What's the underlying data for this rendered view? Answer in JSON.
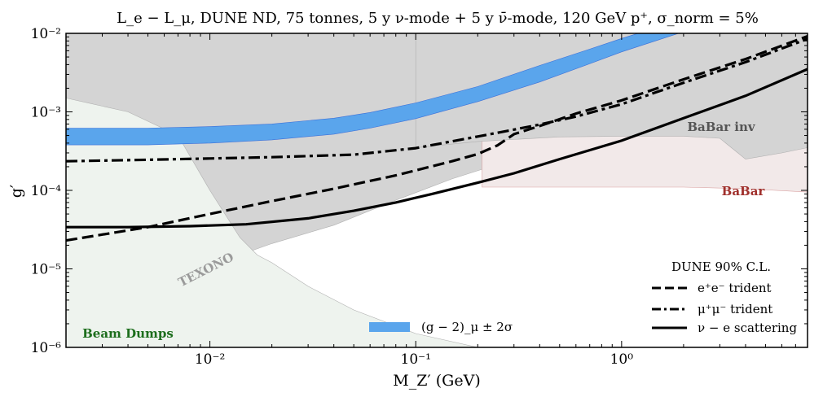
{
  "chart_data": {
    "type": "line",
    "title": "L_e − L_μ,  DUNE ND,   75 tonnes,  5 y ν-mode + 5 y ν̄-mode,  120 GeV p⁺,  σ_norm = 5%",
    "xlabel": "M_Z′ (GeV)",
    "ylabel": "g′",
    "xscale": "log",
    "yscale": "log",
    "xlim": [
      0.002,
      8
    ],
    "ylim": [
      1e-06,
      0.01
    ],
    "x_ticks": [
      {
        "value": 0.01,
        "label": "10⁻²"
      },
      {
        "value": 0.1,
        "label": "10⁻¹"
      },
      {
        "value": 1,
        "label": "10⁰"
      }
    ],
    "y_ticks": [
      {
        "value": 1e-06,
        "label": "10⁻⁶"
      },
      {
        "value": 1e-05,
        "label": "10⁻⁵"
      },
      {
        "value": 0.0001,
        "label": "10⁻⁴"
      },
      {
        "value": 0.001,
        "label": "10⁻³"
      },
      {
        "value": 0.01,
        "label": "10⁻²"
      }
    ],
    "series": [
      {
        "name": "e⁺e⁻ trident",
        "style": "dashed",
        "color": "#000000",
        "x": [
          0.002,
          0.005,
          0.01,
          0.02,
          0.04,
          0.08,
          0.15,
          0.2,
          0.25,
          0.3,
          0.4,
          0.6,
          1,
          2,
          4,
          8
        ],
        "y": [
          2.3e-05,
          3.4e-05,
          5e-05,
          7.3e-05,
          0.000105,
          0.000155,
          0.000235,
          0.00029,
          0.000375,
          0.00052,
          0.00066,
          0.00095,
          0.0014,
          0.0026,
          0.0047,
          0.0092
        ]
      },
      {
        "name": "μ⁺μ⁻ trident",
        "style": "dashdot",
        "color": "#000000",
        "x": [
          0.002,
          0.005,
          0.01,
          0.02,
          0.05,
          0.1,
          0.2,
          0.3,
          0.4,
          0.6,
          1,
          2,
          4,
          8
        ],
        "y": [
          0.000235,
          0.000245,
          0.000255,
          0.000265,
          0.000285,
          0.000345,
          0.000485,
          0.000595,
          0.00069,
          0.00087,
          0.00125,
          0.00235,
          0.0043,
          0.0085
        ]
      },
      {
        "name": "ν − e scattering",
        "style": "solid",
        "color": "#000000",
        "x": [
          0.002,
          0.004,
          0.008,
          0.015,
          0.03,
          0.05,
          0.08,
          0.12,
          0.2,
          0.3,
          0.5,
          1,
          2,
          4,
          8
        ],
        "y": [
          3.4e-05,
          3.4e-05,
          3.5e-05,
          3.7e-05,
          4.4e-05,
          5.5e-05,
          7e-05,
          9e-05,
          0.000125,
          0.000165,
          0.00025,
          0.00043,
          0.00083,
          0.0016,
          0.0035
        ]
      }
    ],
    "regions": [
      {
        "name": "(g − 2)_μ ± 2σ",
        "color": "#5aa5ec",
        "x": [
          0.002,
          0.005,
          0.01,
          0.02,
          0.04,
          0.06,
          0.1,
          0.2,
          0.4,
          0.7,
          1,
          1.5,
          2,
          3,
          4.5
        ],
        "lower": [
          0.00038,
          0.00038,
          0.0004,
          0.00044,
          0.00052,
          0.00062,
          0.00082,
          0.00135,
          0.0024,
          0.0041,
          0.0058,
          0.0082,
          0.0105,
          0.0155,
          0.021
        ],
        "upper": [
          0.00062,
          0.00062,
          0.00065,
          0.0007,
          0.00083,
          0.00098,
          0.0013,
          0.0021,
          0.0039,
          0.0063,
          0.0086,
          0.012,
          0.0155,
          0.0225,
          0.031
        ]
      },
      {
        "name": "excluded (grey)",
        "color": "#d4d4d4",
        "x": [
          0.002,
          0.005,
          0.01,
          0.02,
          0.04,
          0.08,
          0.15,
          0.3,
          0.5,
          0.8
        ],
        "lower": [
          4e-06,
          7e-06,
          1.1e-05,
          2.1e-05,
          3.6e-05,
          7.5e-05,
          0.00014,
          0.00025,
          0.00038,
          0.00049
        ]
      },
      {
        "name": "BaBar",
        "color": "#f2e9e9",
        "x": [
          0.21,
          0.3,
          0.5,
          1,
          2,
          4,
          8
        ],
        "lower": [
          0.00011,
          0.00011,
          0.00011,
          0.00011,
          0.00011,
          0.000105,
          9.5e-05
        ]
      },
      {
        "name": "BaBar inv",
        "color": "#d4d4d4",
        "x": [
          0.1,
          0.2,
          0.5,
          1,
          2,
          3,
          4,
          6,
          8
        ],
        "lower": [
          0.00035,
          0.00042,
          0.00048,
          0.00049,
          0.00049,
          0.00046,
          0.00025,
          0.0003,
          0.00035
        ]
      },
      {
        "name": "Beam Dumps",
        "color": "#eef3ee",
        "x": [
          0.002,
          0.004,
          0.007,
          0.01,
          0.014,
          0.017,
          0.02,
          0.03,
          0.05,
          0.1,
          0.2
        ],
        "upper": [
          0.0015,
          0.001,
          0.0005,
          0.0001,
          2.5e-05,
          1.5e-05,
          1.2e-05,
          6e-06,
          3e-06,
          1.5e-06,
          1e-06
        ]
      }
    ],
    "annotations": [
      {
        "text": "BaBar inv",
        "color": "#555555"
      },
      {
        "text": "BaBar",
        "color": "#a0302c"
      },
      {
        "text": "TEXONO",
        "color": "#9a9a9a"
      },
      {
        "text": "Beam Dumps",
        "color": "#1d6e1d"
      }
    ],
    "legend": {
      "title": "DUNE 90% C.L.",
      "placement": "bottom-right",
      "entries": [
        "e⁺e⁻ trident",
        "μ⁺μ⁻ trident",
        "ν − e scattering"
      ]
    },
    "band_legend": {
      "label": "(g − 2)_μ ± 2σ",
      "placement": "bottom-center"
    }
  }
}
